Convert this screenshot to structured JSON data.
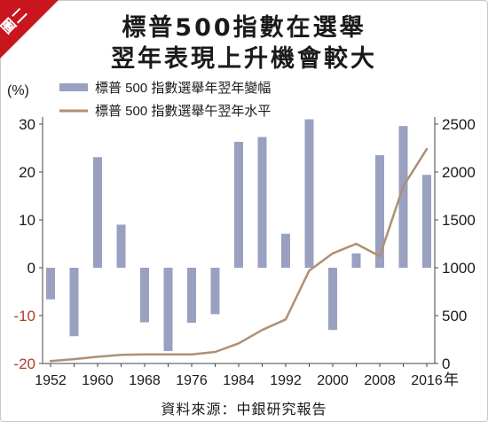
{
  "badge": "圖二",
  "title_lines": [
    "標普500指數在選舉",
    "翌年表現上升機會較大"
  ],
  "source": "資料來源：中銀研究報告",
  "colors": {
    "bar": "#9aa0bf",
    "line": "#b08f74",
    "badge": "#c9151e",
    "negative_tick": "#b33a2a"
  },
  "chart_data": {
    "type": "bar+line",
    "x": [
      1952,
      1956,
      1960,
      1964,
      1968,
      1972,
      1976,
      1980,
      1984,
      1988,
      1992,
      1996,
      2000,
      2004,
      2008,
      2012,
      2016
    ],
    "x_tick_labels": [
      "1952",
      "1960",
      "1968",
      "1976",
      "1984",
      "1992",
      "2000",
      "2008",
      "2016"
    ],
    "x_unit": "年",
    "y_left": {
      "unit": "(%)",
      "range": [
        -20,
        30
      ],
      "ticks": [
        "-20",
        "-10",
        "0",
        "10",
        "20",
        "30"
      ]
    },
    "y_right": {
      "range": [
        0,
        2500
      ],
      "ticks": [
        "0",
        "500",
        "1000",
        "1500",
        "2000",
        "2500"
      ]
    },
    "grid": false,
    "legend_position": "top-left",
    "series": [
      {
        "name": "標普 500 指數選舉年翌年變幅",
        "type": "bar",
        "axis": "left",
        "values": [
          -6.6,
          -14.3,
          23.1,
          9,
          -11.4,
          -17.4,
          -11.5,
          -9.7,
          26.3,
          27.3,
          7.1,
          31,
          -13,
          3,
          23.5,
          29.6,
          19.4
        ]
      },
      {
        "name": "標普 500 指數選舉午翌年水平",
        "type": "line",
        "axis": "right",
        "values": [
          25,
          45,
          70,
          90,
          95,
          95,
          95,
          120,
          210,
          350,
          460,
          970,
          1150,
          1250,
          1120,
          1850,
          2240
        ]
      }
    ]
  }
}
